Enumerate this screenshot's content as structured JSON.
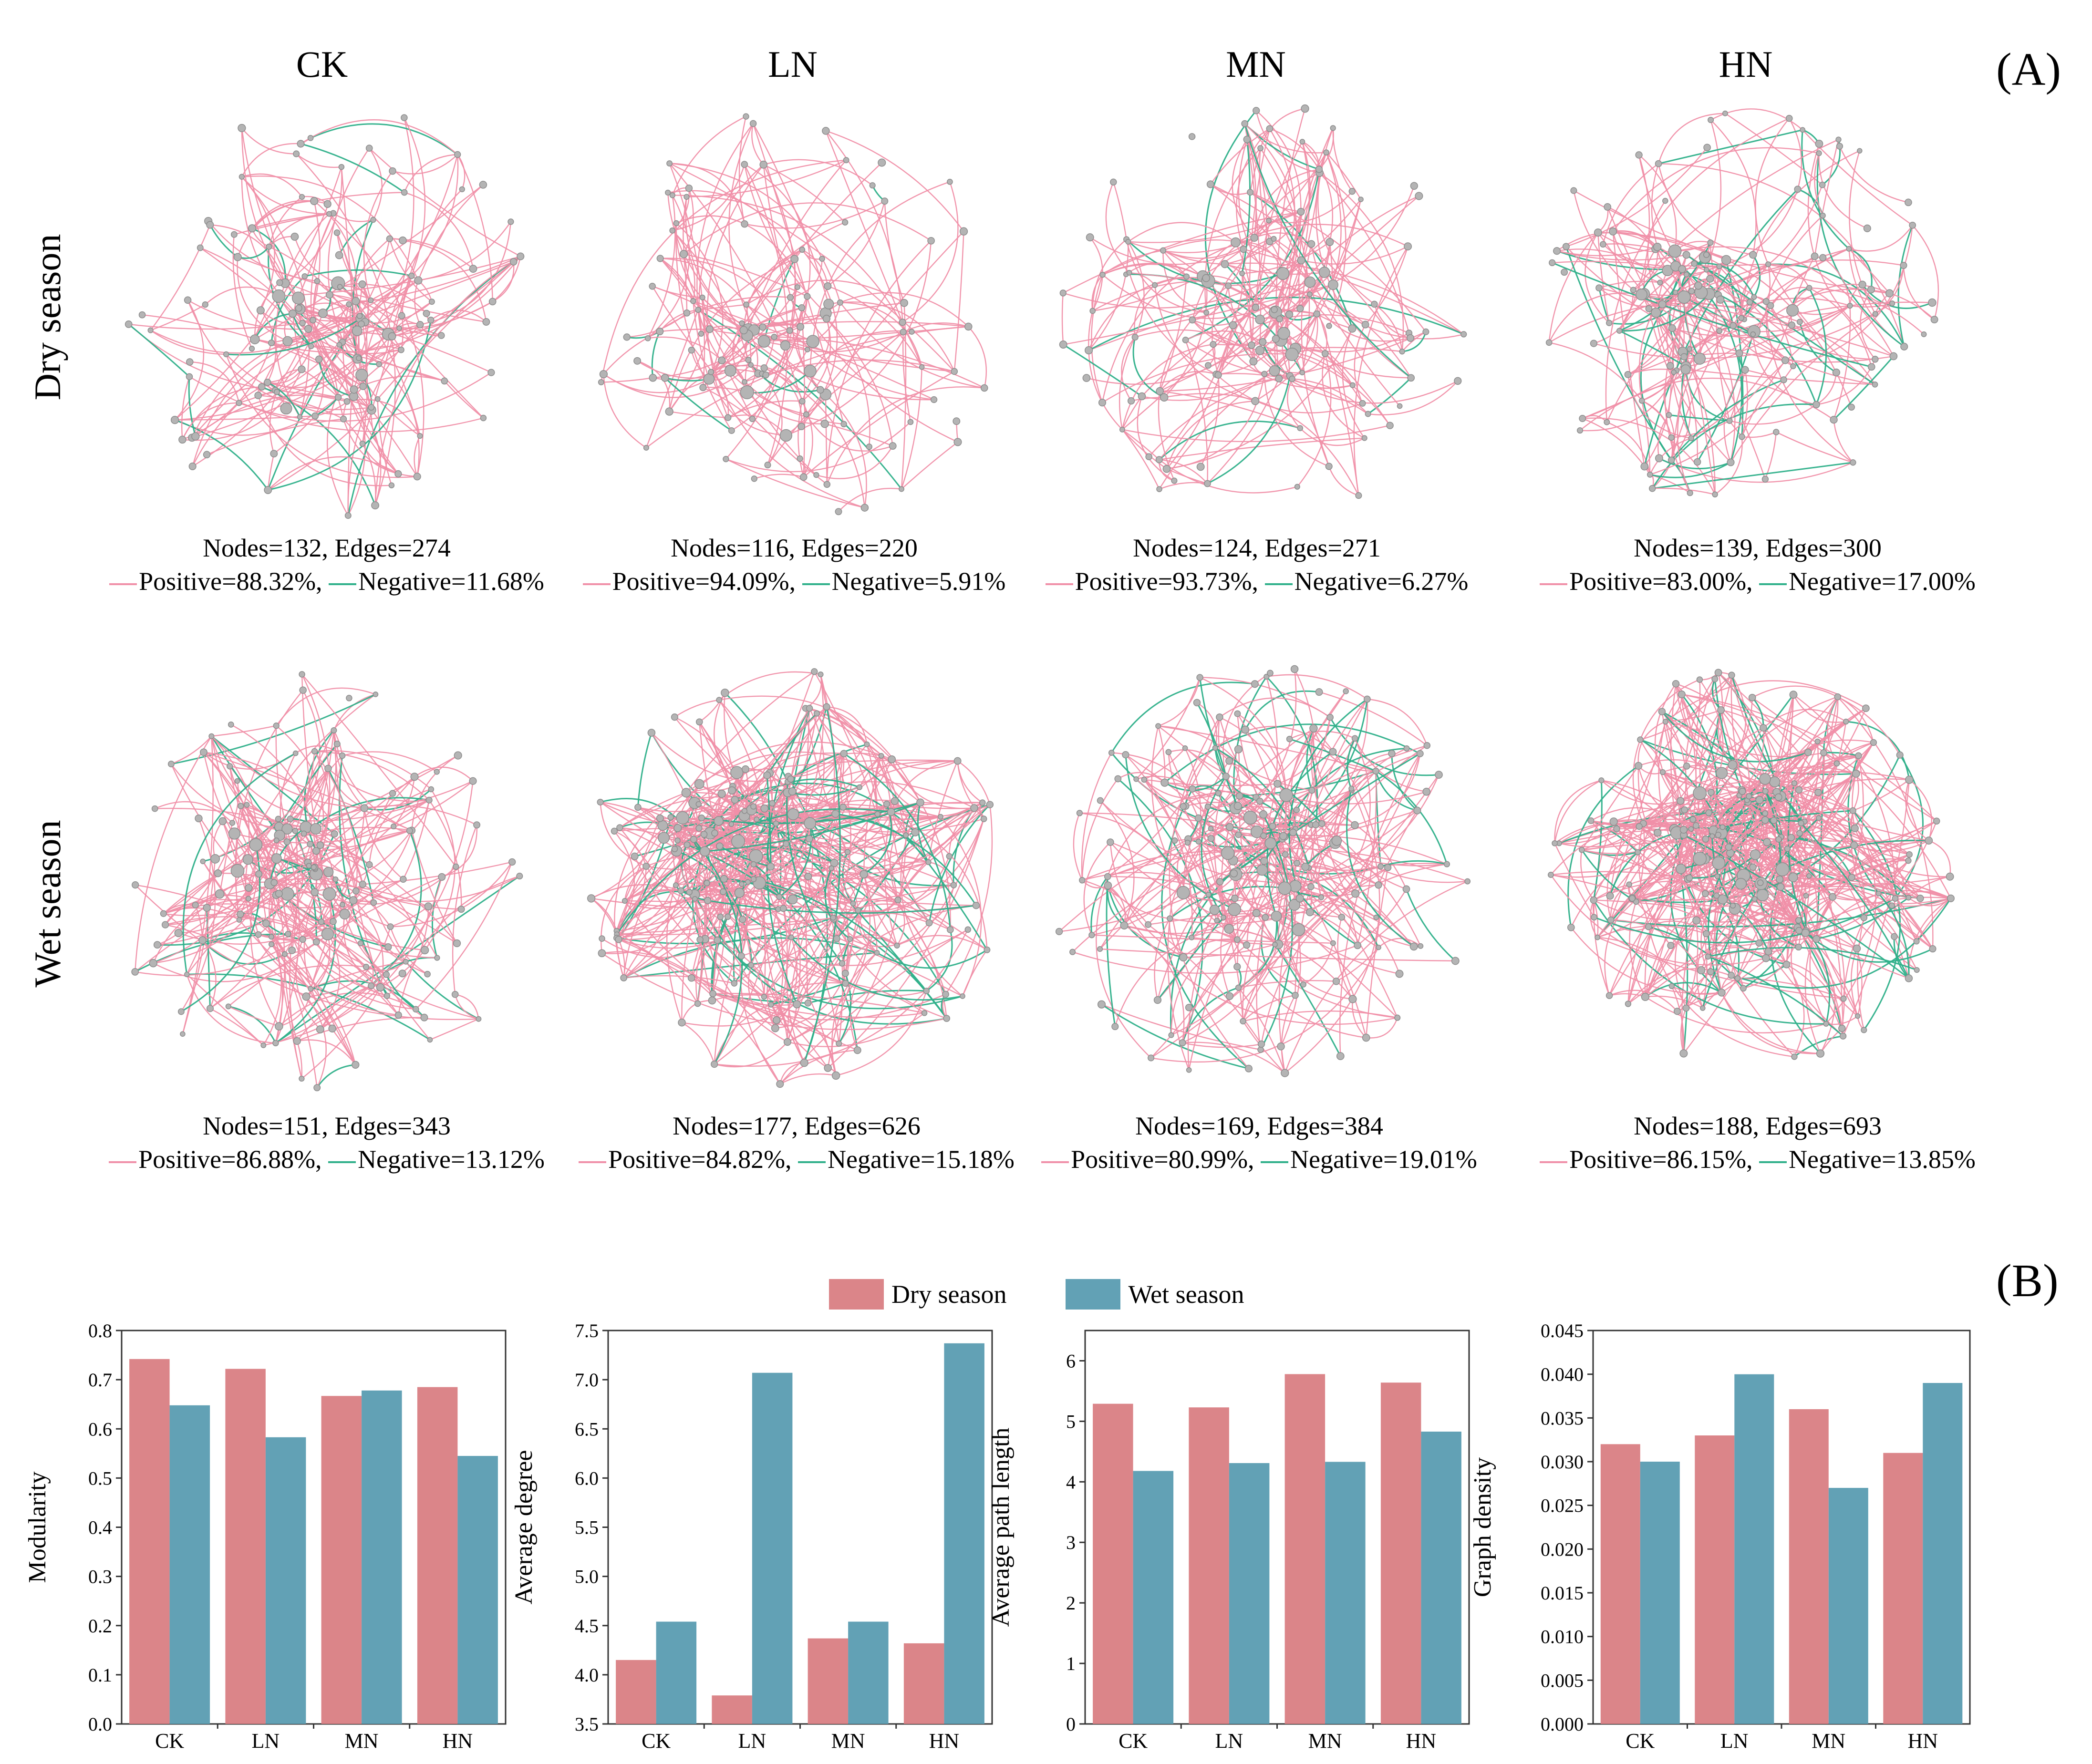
{
  "panel_a": {
    "label": "(A)",
    "columns": [
      "CK",
      "LN",
      "MN",
      "HN"
    ],
    "rows": [
      "Dry season",
      "Wet season"
    ],
    "colors": {
      "positive": "#f08fa8",
      "negative": "#2fb08a",
      "node": "#b4b4b4"
    },
    "networks": [
      {
        "season": "Dry season",
        "treatment": "CK",
        "nodes_text": "Nodes=132, Edges=274",
        "positive_text": "Positive=88.32%,",
        "negative_text": "Negative=11.68%"
      },
      {
        "season": "Dry season",
        "treatment": "LN",
        "nodes_text": "Nodes=116, Edges=220",
        "positive_text": "Positive=94.09%,",
        "negative_text": "Negative=5.91%"
      },
      {
        "season": "Dry season",
        "treatment": "MN",
        "nodes_text": "Nodes=124, Edges=271",
        "positive_text": "Positive=93.73%,",
        "negative_text": "Negative=6.27%"
      },
      {
        "season": "Dry season",
        "treatment": "HN",
        "nodes_text": "Nodes=139, Edges=300",
        "positive_text": "Positive=83.00%,",
        "negative_text": "Negative=17.00%"
      },
      {
        "season": "Wet season",
        "treatment": "CK",
        "nodes_text": "Nodes=151, Edges=343",
        "positive_text": "Positive=86.88%,",
        "negative_text": "Negative=13.12%"
      },
      {
        "season": "Wet season",
        "treatment": "LN",
        "nodes_text": "Nodes=177, Edges=626",
        "positive_text": "Positive=84.82%,",
        "negative_text": "Negative=15.18%"
      },
      {
        "season": "Wet season",
        "treatment": "MN",
        "nodes_text": "Nodes=169, Edges=384",
        "positive_text": "Positive=80.99%,",
        "negative_text": "Negative=19.01%"
      },
      {
        "season": "Wet season",
        "treatment": "HN",
        "nodes_text": "Nodes=188, Edges=693",
        "positive_text": "Positive=86.15%,",
        "negative_text": "Negative=13.85%"
      }
    ]
  },
  "panel_b": {
    "label": "(B)",
    "legend": [
      {
        "name": "Dry season",
        "color": "#db8589"
      },
      {
        "name": "Wet season",
        "color": "#62a1b5"
      }
    ]
  },
  "chart_data": [
    {
      "type": "bar",
      "title": "",
      "xlabel": "",
      "ylabel": "Modularity",
      "categories": [
        "CK",
        "LN",
        "MN",
        "HN"
      ],
      "series": [
        {
          "name": "Dry season",
          "values": [
            0.742,
            0.722,
            0.667,
            0.685
          ]
        },
        {
          "name": "Wet season",
          "values": [
            0.648,
            0.583,
            0.678,
            0.545
          ]
        }
      ],
      "ylim": [
        0.0,
        0.8
      ],
      "yticks": [
        0.0,
        0.1,
        0.2,
        0.3,
        0.4,
        0.5,
        0.6,
        0.7,
        0.8
      ],
      "ytick_labels": [
        "0.0",
        "0.1",
        "0.2",
        "0.3",
        "0.4",
        "0.5",
        "0.6",
        "0.7",
        "0.8"
      ]
    },
    {
      "type": "bar",
      "title": "",
      "xlabel": "",
      "ylabel": "Average degree",
      "categories": [
        "CK",
        "LN",
        "MN",
        "HN"
      ],
      "series": [
        {
          "name": "Dry season",
          "values": [
            4.15,
            3.79,
            4.37,
            4.32
          ]
        },
        {
          "name": "Wet season",
          "values": [
            4.54,
            7.07,
            4.54,
            7.37
          ]
        }
      ],
      "ylim": [
        3.5,
        7.5
      ],
      "yticks": [
        3.5,
        4.0,
        4.5,
        5.0,
        5.5,
        6.0,
        6.5,
        7.0,
        7.5
      ],
      "ytick_labels": [
        "3.5",
        "4.0",
        "4.5",
        "5.0",
        "5.5",
        "6.0",
        "6.5",
        "7.0",
        "7.5"
      ]
    },
    {
      "type": "bar",
      "title": "",
      "xlabel": "",
      "ylabel": "Average path length",
      "categories": [
        "CK",
        "LN",
        "MN",
        "HN"
      ],
      "series": [
        {
          "name": "Dry season",
          "values": [
            5.29,
            5.23,
            5.78,
            5.64
          ]
        },
        {
          "name": "Wet season",
          "values": [
            4.18,
            4.31,
            4.33,
            4.83
          ]
        }
      ],
      "ylim": [
        0,
        6.5
      ],
      "yticks": [
        0,
        1,
        2,
        3,
        4,
        5,
        6
      ],
      "ytick_labels": [
        "0",
        "1",
        "2",
        "3",
        "4",
        "5",
        "6"
      ]
    },
    {
      "type": "bar",
      "title": "",
      "xlabel": "",
      "ylabel": "Graph density",
      "categories": [
        "CK",
        "LN",
        "MN",
        "HN"
      ],
      "series": [
        {
          "name": "Dry season",
          "values": [
            0.032,
            0.033,
            0.036,
            0.031
          ]
        },
        {
          "name": "Wet season",
          "values": [
            0.03,
            0.04,
            0.027,
            0.039
          ]
        }
      ],
      "ylim": [
        0.0,
        0.045
      ],
      "yticks": [
        0.0,
        0.005,
        0.01,
        0.015,
        0.02,
        0.025,
        0.03,
        0.035,
        0.04,
        0.045
      ],
      "ytick_labels": [
        "0.000",
        "0.005",
        "0.010",
        "0.015",
        "0.020",
        "0.025",
        "0.030",
        "0.035",
        "0.040",
        "0.045"
      ]
    }
  ]
}
